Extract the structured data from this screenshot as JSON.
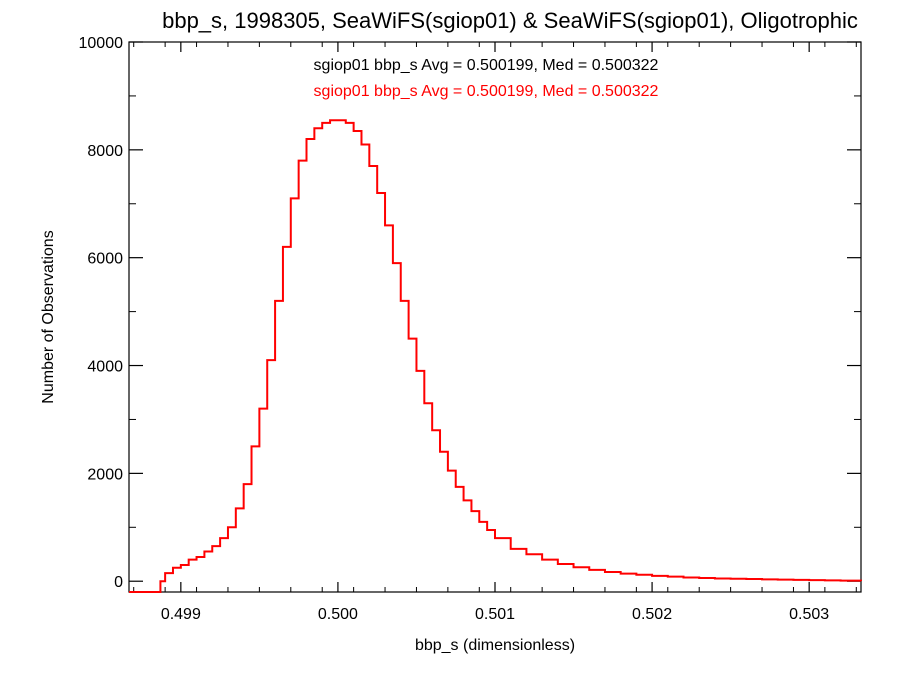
{
  "chart_data": {
    "type": "line",
    "title": "bbp_s, 1998305, SeaWiFS(sgiop01) & SeaWiFS(sgiop01), Oligotrophic",
    "xlabel": "bbp_s (dimensionless)",
    "ylabel": "Number of Observations",
    "xlim": [
      0.49867,
      0.50333
    ],
    "ylim": [
      -200,
      10000
    ],
    "xticks": [
      0.499,
      0.5,
      0.501,
      0.502,
      0.503
    ],
    "xtick_labels": [
      "0.499",
      "0.500",
      "0.501",
      "0.502",
      "0.503"
    ],
    "yticks": [
      0,
      2000,
      4000,
      6000,
      8000,
      10000
    ],
    "ytick_labels": [
      "0",
      "2000",
      "4000",
      "6000",
      "8000",
      "10000"
    ],
    "grid": false,
    "legend": [
      {
        "text": "sgiop01 bbp_s Avg = 0.500199, Med = 0.500322",
        "color": "#000000"
      },
      {
        "text": "sgiop01 bbp_s Avg = 0.500199, Med = 0.500322",
        "color": "#ff0000"
      }
    ],
    "series": [
      {
        "color": "#ff0000",
        "step": true,
        "x": [
          0.49867,
          0.49887,
          0.4989,
          0.49895,
          0.499,
          0.49905,
          0.4991,
          0.49915,
          0.4992,
          0.49925,
          0.4993,
          0.49935,
          0.4994,
          0.49945,
          0.4995,
          0.49955,
          0.4996,
          0.49965,
          0.4997,
          0.49975,
          0.4998,
          0.49985,
          0.4999,
          0.49995,
          0.5,
          0.50005,
          0.5001,
          0.50015,
          0.5002,
          0.50025,
          0.5003,
          0.50035,
          0.5004,
          0.50045,
          0.5005,
          0.50055,
          0.5006,
          0.50065,
          0.5007,
          0.50075,
          0.5008,
          0.50085,
          0.5009,
          0.50095,
          0.501,
          0.5011,
          0.5012,
          0.5013,
          0.5014,
          0.5015,
          0.5016,
          0.5017,
          0.5018,
          0.5019,
          0.502,
          0.5021,
          0.5022,
          0.5023,
          0.5024,
          0.5025,
          0.5026,
          0.5027,
          0.5028,
          0.5029,
          0.503,
          0.5031,
          0.5032,
          0.50333
        ],
        "y": [
          -200,
          0,
          150,
          250,
          300,
          400,
          450,
          550,
          650,
          800,
          1000,
          1350,
          1800,
          2500,
          3200,
          4100,
          5200,
          6200,
          7100,
          7800,
          8200,
          8400,
          8500,
          8550,
          8550,
          8500,
          8350,
          8100,
          7700,
          7200,
          6600,
          5900,
          5200,
          4500,
          3900,
          3300,
          2800,
          2400,
          2050,
          1750,
          1500,
          1300,
          1100,
          950,
          800,
          600,
          500,
          400,
          320,
          260,
          210,
          170,
          140,
          120,
          100,
          85,
          70,
          60,
          50,
          45,
          40,
          35,
          30,
          25,
          20,
          15,
          10,
          5
        ]
      }
    ]
  }
}
